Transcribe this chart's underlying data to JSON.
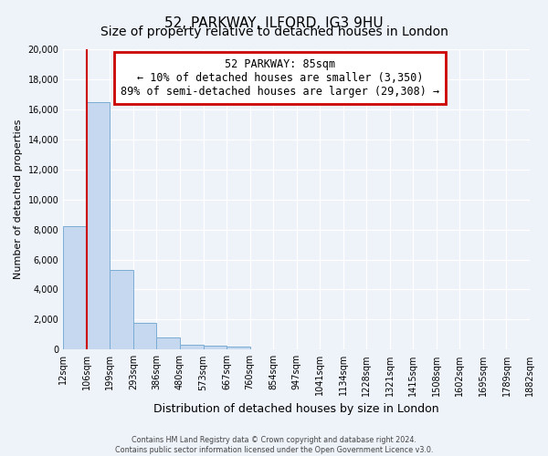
{
  "title": "52, PARKWAY, ILFORD, IG3 9HU",
  "subtitle": "Size of property relative to detached houses in London",
  "xlabel": "Distribution of detached houses by size in London",
  "ylabel": "Number of detached properties",
  "bin_labels": [
    "12sqm",
    "106sqm",
    "199sqm",
    "293sqm",
    "386sqm",
    "480sqm",
    "573sqm",
    "667sqm",
    "760sqm",
    "854sqm",
    "947sqm",
    "1041sqm",
    "1134sqm",
    "1228sqm",
    "1321sqm",
    "1415sqm",
    "1508sqm",
    "1602sqm",
    "1695sqm",
    "1789sqm",
    "1882sqm"
  ],
  "bar_values": [
    8200,
    16500,
    5300,
    1750,
    800,
    300,
    250,
    200,
    0,
    0,
    0,
    0,
    0,
    0,
    0,
    0,
    0,
    0,
    0,
    0
  ],
  "bar_color": "#c5d8f0",
  "bar_edge_color": "#7aadd4",
  "ylim": [
    0,
    20000
  ],
  "yticks": [
    0,
    2000,
    4000,
    6000,
    8000,
    10000,
    12000,
    14000,
    16000,
    18000,
    20000
  ],
  "property_sqm": 85,
  "property_label": "52 PARKWAY: 85sqm",
  "annotation_line1": "← 10% of detached houses are smaller (3,350)",
  "annotation_line2": "89% of semi-detached houses are larger (29,308) →",
  "box_color": "#ffffff",
  "box_edge_color": "#cc0000",
  "line_color": "#cc0000",
  "footer_line1": "Contains HM Land Registry data © Crown copyright and database right 2024.",
  "footer_line2": "Contains public sector information licensed under the Open Government Licence v3.0.",
  "background_color": "#eef2f9",
  "grid_color": "#ffffff",
  "title_fontsize": 11,
  "subtitle_fontsize": 10,
  "ylabel_fontsize": 8,
  "xlabel_fontsize": 9,
  "tick_fontsize": 7,
  "annotation_fontsize": 8.5
}
